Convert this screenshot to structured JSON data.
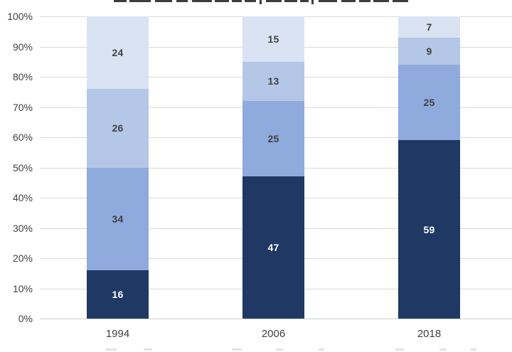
{
  "chart_data": {
    "type": "bar",
    "stacked": true,
    "orientation": "vertical",
    "categories": [
      "1994",
      "2006",
      "2018"
    ],
    "series": [
      {
        "name": "segment-1-bottom",
        "values": [
          16,
          47,
          59
        ],
        "color": "#1F3864",
        "label_color": "#FFFFFF"
      },
      {
        "name": "segment-2",
        "values": [
          34,
          25,
          25
        ],
        "color": "#8FAADC",
        "label_color": "#404040"
      },
      {
        "name": "segment-3",
        "values": [
          26,
          13,
          9
        ],
        "color": "#B4C7E7",
        "label_color": "#404040"
      },
      {
        "name": "segment-4-top",
        "values": [
          24,
          15,
          7
        ],
        "color": "#DAE3F3",
        "label_color": "#404040"
      }
    ],
    "value_unit": "percent",
    "ylim": [
      0,
      100
    ],
    "y_ticks": [
      "0%",
      "10%",
      "20%",
      "30%",
      "40%",
      "50%",
      "60%",
      "70%",
      "80%",
      "90%",
      "100%"
    ],
    "grid": true,
    "gridline_color": "#D9D9D9",
    "tick_label_color": "#404040",
    "category_label_color": "#404040",
    "cropped_edges": {
      "title_fragment_visible_top": true,
      "legend_fragment_visible_bottom": true
    }
  }
}
